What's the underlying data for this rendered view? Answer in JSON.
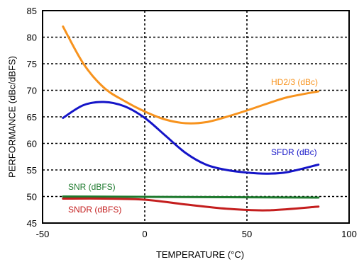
{
  "chart_data": {
    "type": "line",
    "xlabel": "TEMPERATURE (°C)",
    "ylabel": "PERFORMANCE (dBc/dBFS)",
    "xlim": [
      -50,
      100
    ],
    "ylim": [
      45,
      85
    ],
    "x_ticks": [
      "-50",
      "0",
      "50",
      "100"
    ],
    "y_ticks": [
      "45",
      "50",
      "55",
      "60",
      "65",
      "70",
      "75",
      "80",
      "85"
    ],
    "grid": "dotted",
    "series": [
      {
        "name": "HD2/3 (dBc)",
        "color": "#F7931E",
        "x": [
          -40,
          -30,
          -20,
          -10,
          0,
          10,
          20,
          30,
          40,
          50,
          60,
          70,
          85
        ],
        "y": [
          82,
          75,
          70.5,
          68,
          66,
          64.5,
          63.8,
          64,
          65,
          66.2,
          67.5,
          68.7,
          69.8
        ]
      },
      {
        "name": "SFDR (dBc)",
        "color": "#1414C8",
        "x": [
          -40,
          -30,
          -20,
          -10,
          0,
          10,
          20,
          30,
          40,
          50,
          60,
          70,
          85
        ],
        "y": [
          64.8,
          67.2,
          67.8,
          67,
          64.8,
          61.5,
          58.2,
          56,
          55,
          54.5,
          54.3,
          54.6,
          56
        ]
      },
      {
        "name": "SNR (dBFS)",
        "color": "#1E7A2E",
        "x": [
          -40,
          85
        ],
        "y": [
          50,
          49.8
        ]
      },
      {
        "name": "SNDR (dBFS)",
        "color": "#C41E1E",
        "x": [
          -40,
          -20,
          0,
          20,
          40,
          60,
          85
        ],
        "y": [
          49.6,
          49.6,
          49.4,
          48.5,
          47.7,
          47.4,
          48.1
        ]
      }
    ]
  }
}
